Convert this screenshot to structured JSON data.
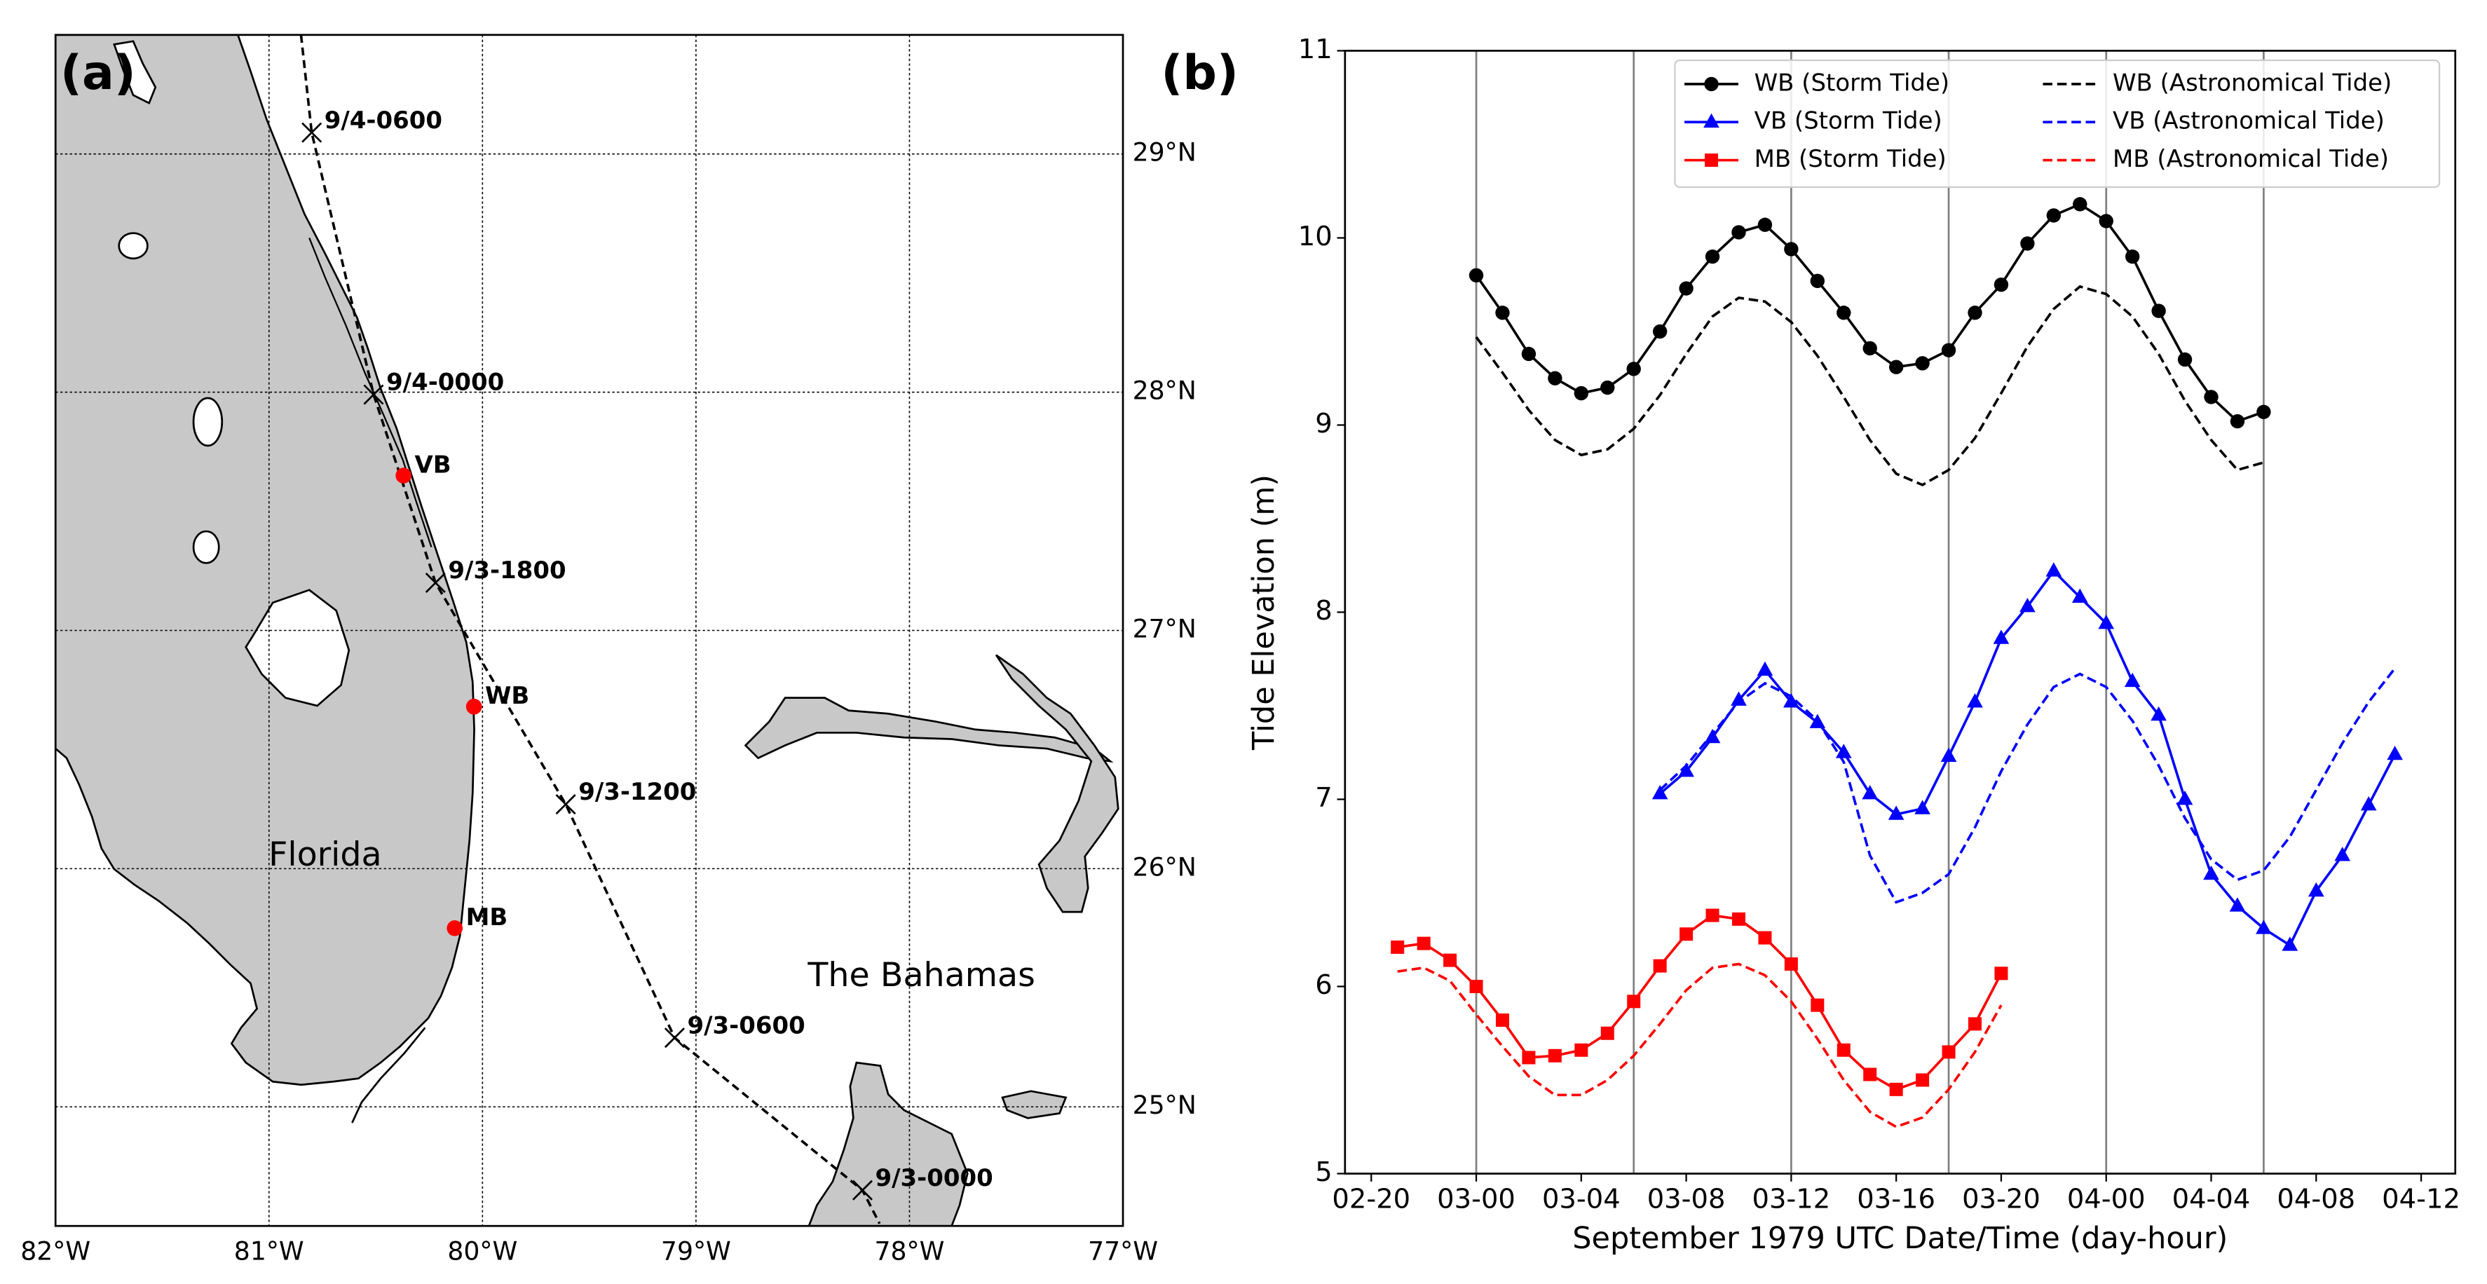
{
  "chart_data": [
    {
      "type": "map",
      "panel_label": "(a)",
      "annotations": [
        "Florida",
        "The Bahamas"
      ],
      "xlim": [
        -82,
        -77
      ],
      "ylim": [
        24.5,
        29.5
      ],
      "xticks": [
        {
          "value": -82,
          "label": "82°W"
        },
        {
          "value": -81,
          "label": "81°W"
        },
        {
          "value": -80,
          "label": "80°W"
        },
        {
          "value": -79,
          "label": "79°W"
        },
        {
          "value": -78,
          "label": "78°W"
        },
        {
          "value": -77,
          "label": "77°W"
        }
      ],
      "yticks": [
        {
          "value": 25,
          "label": "25°N"
        },
        {
          "value": 26,
          "label": "26°N"
        },
        {
          "value": 27,
          "label": "27°N"
        },
        {
          "value": 28,
          "label": "28°N"
        },
        {
          "value": 29,
          "label": "29°N"
        }
      ],
      "grid": true,
      "track": {
        "labels": [
          null,
          "9/4-0600",
          "9/4-0000",
          "9/3-1800",
          "9/3-1200",
          "9/3-0600",
          "9/3-0000",
          null
        ],
        "lon": [
          -80.85,
          -80.8,
          -80.51,
          -80.22,
          -79.61,
          -79.1,
          -78.22,
          -78.14
        ],
        "lat": [
          29.5,
          29.09,
          27.99,
          27.2,
          26.27,
          25.29,
          24.65,
          24.51
        ],
        "color": "#000000"
      },
      "stations": {
        "names": [
          "VB",
          "WB",
          "MB"
        ],
        "lon": [
          -80.37,
          -80.04,
          -80.13
        ],
        "lat": [
          27.65,
          26.68,
          25.75
        ],
        "color": "#ff0000"
      }
    },
    {
      "type": "line",
      "panel_label": "(b)",
      "xlabel": "September 1979 UTC Date/Time (day-hour)",
      "ylabel": "Tide Elevation (m)",
      "xlim": [
        19,
        61.3
      ],
      "ylim": [
        5,
        11
      ],
      "xticks": [
        {
          "value": 20,
          "label": "02-20"
        },
        {
          "value": 24,
          "label": "03-00"
        },
        {
          "value": 28,
          "label": "03-04"
        },
        {
          "value": 32,
          "label": "03-08"
        },
        {
          "value": 36,
          "label": "03-12"
        },
        {
          "value": 40,
          "label": "03-16"
        },
        {
          "value": 44,
          "label": "03-20"
        },
        {
          "value": 48,
          "label": "04-00"
        },
        {
          "value": 52,
          "label": "04-04"
        },
        {
          "value": 56,
          "label": "04-08"
        },
        {
          "value": 60,
          "label": "04-12"
        }
      ],
      "yticks": [
        5,
        6,
        7,
        8,
        9,
        10,
        11
      ],
      "vlines": [
        24,
        30,
        36,
        42,
        48,
        54
      ],
      "legend": "upper right",
      "series": [
        {
          "name": "WB (Storm Tide)",
          "color": "#000000",
          "style": "solid",
          "marker": "circle",
          "x": [
            24,
            25,
            26,
            27,
            28,
            29,
            30,
            31,
            32,
            33,
            34,
            35,
            36,
            37,
            38,
            39,
            40,
            41,
            42,
            43,
            44,
            45,
            46,
            47,
            48,
            49,
            50,
            51,
            52,
            53,
            54
          ],
          "values": [
            9.8,
            9.6,
            9.38,
            9.25,
            9.17,
            9.2,
            9.3,
            9.5,
            9.73,
            9.9,
            10.03,
            10.07,
            9.94,
            9.77,
            9.6,
            9.41,
            9.31,
            9.33,
            9.4,
            9.6,
            9.75,
            9.97,
            10.12,
            10.18,
            10.09,
            9.9,
            9.61,
            9.35,
            9.15,
            9.02,
            9.07
          ]
        },
        {
          "name": "VB (Storm Tide)",
          "color": "#0000ff",
          "style": "solid",
          "marker": "triangle",
          "x": [
            31,
            32,
            33,
            34,
            35,
            36,
            37,
            38,
            39,
            40,
            41,
            42,
            43,
            44,
            45,
            46,
            47,
            48,
            49,
            50,
            51,
            52,
            53,
            54,
            55,
            56,
            57,
            58,
            59
          ],
          "values": [
            7.03,
            7.15,
            7.33,
            7.53,
            7.69,
            7.52,
            7.41,
            7.25,
            7.03,
            6.92,
            6.95,
            7.23,
            7.52,
            7.86,
            8.03,
            8.22,
            8.08,
            7.94,
            7.63,
            7.45,
            7.0,
            6.6,
            6.43,
            6.31,
            6.22,
            6.51,
            6.7,
            6.97,
            7.24
          ]
        },
        {
          "name": "MB (Storm Tide)",
          "color": "#ff0000",
          "style": "solid",
          "marker": "square",
          "x": [
            21,
            22,
            23,
            24,
            25,
            26,
            27,
            28,
            29,
            30,
            31,
            32,
            33,
            34,
            35,
            36,
            37,
            38,
            39,
            40,
            41,
            42,
            43,
            44
          ],
          "values": [
            6.21,
            6.23,
            6.14,
            6.0,
            5.82,
            5.62,
            5.63,
            5.66,
            5.75,
            5.92,
            6.11,
            6.28,
            6.38,
            6.36,
            6.26,
            6.12,
            5.9,
            5.66,
            5.53,
            5.45,
            5.5,
            5.65,
            5.8,
            6.07
          ]
        },
        {
          "name": "WB (Astronomical Tide)",
          "color": "#000000",
          "style": "dashed",
          "marker": null,
          "x": [
            24,
            25,
            26,
            27,
            28,
            29,
            30,
            31,
            32,
            33,
            34,
            35,
            36,
            37,
            38,
            39,
            40,
            41,
            42,
            43,
            44,
            45,
            46,
            47,
            48,
            49,
            50,
            51,
            52,
            53,
            54
          ],
          "values": [
            9.47,
            9.28,
            9.08,
            8.92,
            8.84,
            8.87,
            8.98,
            9.16,
            9.38,
            9.58,
            9.68,
            9.66,
            9.55,
            9.37,
            9.15,
            8.92,
            8.74,
            8.68,
            8.76,
            8.93,
            9.17,
            9.42,
            9.62,
            9.74,
            9.7,
            9.58,
            9.38,
            9.13,
            8.92,
            8.76,
            8.8
          ]
        },
        {
          "name": "VB (Astronomical Tide)",
          "color": "#0000ff",
          "style": "dashed",
          "marker": null,
          "x": [
            31,
            32,
            33,
            34,
            35,
            36,
            37,
            38,
            39,
            40,
            41,
            42,
            43,
            44,
            45,
            46,
            47,
            48,
            49,
            50,
            51,
            52,
            53,
            54,
            55,
            56,
            57,
            58,
            59
          ],
          "values": [
            7.05,
            7.18,
            7.35,
            7.52,
            7.62,
            7.55,
            7.42,
            7.2,
            6.7,
            6.45,
            6.5,
            6.6,
            6.85,
            7.15,
            7.4,
            7.6,
            7.67,
            7.6,
            7.42,
            7.18,
            6.9,
            6.68,
            6.57,
            6.62,
            6.8,
            7.05,
            7.3,
            7.52,
            7.7
          ]
        },
        {
          "name": "MB (Astronomical Tide)",
          "color": "#ff0000",
          "style": "dashed",
          "marker": null,
          "x": [
            21,
            22,
            23,
            24,
            25,
            26,
            27,
            28,
            29,
            30,
            31,
            32,
            33,
            34,
            35,
            36,
            37,
            38,
            39,
            40,
            41,
            42,
            43,
            44
          ],
          "values": [
            6.08,
            6.1,
            6.03,
            5.85,
            5.68,
            5.52,
            5.42,
            5.42,
            5.5,
            5.63,
            5.8,
            5.98,
            6.1,
            6.12,
            6.06,
            5.92,
            5.72,
            5.5,
            5.33,
            5.25,
            5.3,
            5.45,
            5.65,
            5.9
          ]
        }
      ]
    }
  ]
}
